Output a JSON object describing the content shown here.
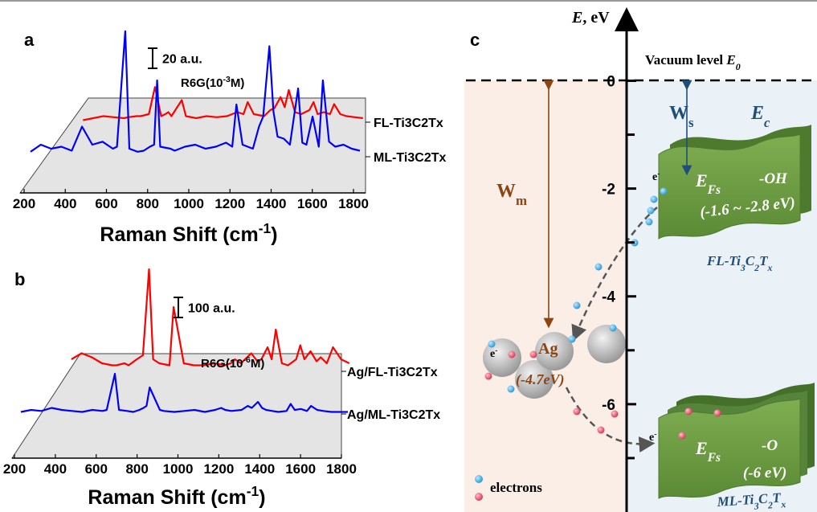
{
  "chart_data": [
    {
      "type": "line",
      "panel": "a",
      "annotation": [
        "R6G(10",
        "-3",
        "M)"
      ],
      "scale_bar": {
        "value": 20,
        "label": "20 a.u."
      },
      "xlabel": [
        "Raman Shift (cm",
        "-1",
        ")"
      ],
      "x": [
        200,
        250,
        300,
        350,
        400,
        450,
        500,
        550,
        600,
        620,
        660,
        680,
        720,
        750,
        780,
        800,
        815,
        830,
        880,
        900,
        950,
        1000,
        1050,
        1100,
        1150,
        1180,
        1200,
        1230,
        1280,
        1310,
        1330,
        1360,
        1380,
        1400,
        1430,
        1460,
        1500,
        1520,
        1540,
        1570,
        1600,
        1620,
        1650,
        1680,
        1720,
        1760,
        1800
      ],
      "xlim": [
        200,
        1800
      ],
      "xticks": [
        200,
        400,
        600,
        800,
        1000,
        1200,
        1400,
        1600,
        1800
      ],
      "series": [
        {
          "name": "FL-Ti3C2Tx",
          "color": "#ff0000",
          "values": [
            null,
            null,
            null,
            null,
            2,
            4,
            6,
            5,
            4,
            5,
            6,
            6,
            8,
            35,
            6,
            8,
            10,
            6,
            22,
            6,
            4,
            6,
            5,
            6,
            10,
            8,
            20,
            8,
            6,
            12,
            14,
            25,
            15,
            32,
            10,
            8,
            12,
            20,
            8,
            10,
            8,
            18,
            8,
            6,
            5,
            4,
            null
          ]
        },
        {
          "name": "ML-Ti3C2Tx",
          "color": "#0000ff",
          "values": [
            5,
            12,
            8,
            10,
            6,
            30,
            12,
            15,
            8,
            10,
            125,
            8,
            5,
            6,
            10,
            12,
            76,
            10,
            8,
            6,
            10,
            12,
            8,
            10,
            14,
            10,
            52,
            12,
            8,
            30,
            40,
            110,
            45,
            20,
            18,
            12,
            68,
            14,
            12,
            40,
            10,
            76,
            15,
            10,
            12,
            8,
            6
          ]
        }
      ]
    },
    {
      "type": "line",
      "panel": "b",
      "annotation": [
        "R6G(10",
        "-6",
        "M)"
      ],
      "scale_bar": {
        "value": 100,
        "label": "100 a.u."
      },
      "xlabel": [
        "Raman Shift (cm",
        "-1",
        ")"
      ],
      "x": [
        200,
        250,
        300,
        350,
        400,
        450,
        500,
        550,
        600,
        620,
        660,
        680,
        720,
        750,
        780,
        800,
        815,
        830,
        880,
        900,
        950,
        1000,
        1050,
        1100,
        1150,
        1180,
        1200,
        1230,
        1280,
        1310,
        1330,
        1360,
        1380,
        1400,
        1430,
        1460,
        1500,
        1520,
        1540,
        1570,
        1600,
        1620,
        1650,
        1680,
        1720,
        1760,
        1800
      ],
      "xlim": [
        200,
        1800
      ],
      "xticks": [
        200,
        400,
        600,
        800,
        1000,
        1200,
        1400,
        1600,
        1800
      ],
      "series": [
        {
          "name": "Ag/FL-Ti3C2Tx",
          "color": "#ff0000",
          "values": [
            null,
            null,
            null,
            null,
            60,
            90,
            70,
            40,
            30,
            30,
            40,
            30,
            60,
            80,
            508,
            60,
            50,
            40,
            30,
            320,
            40,
            30,
            30,
            40,
            30,
            40,
            60,
            40,
            90,
            50,
            60,
            120,
            60,
            208,
            40,
            30,
            60,
            130,
            60,
            100,
            50,
            70,
            40,
            120,
            60,
            40,
            null
          ]
        },
        {
          "name": "Ag/ML-Ti3C2Tx",
          "color": "#0000ff",
          "values": [
            10,
            20,
            15,
            30,
            20,
            15,
            10,
            20,
            15,
            20,
            200,
            20,
            15,
            10,
            20,
            30,
            40,
            132,
            20,
            15,
            10,
            15,
            20,
            10,
            20,
            30,
            20,
            15,
            20,
            40,
            30,
            60,
            30,
            20,
            15,
            10,
            15,
            50,
            20,
            25,
            15,
            40,
            20,
            15,
            10,
            10,
            10
          ]
        }
      ]
    }
  ],
  "diagram": {
    "panel": "c",
    "axis_label": [
      "E",
      ", eV"
    ],
    "ylim": [
      -8,
      1.2
    ],
    "yticks": [
      0,
      -2,
      -4,
      -6
    ],
    "minor_yticks": [
      -1,
      -3,
      -5,
      -7
    ],
    "vacuum": [
      "Vacuum level ",
      "E",
      "0"
    ],
    "wm": [
      "W",
      "m"
    ],
    "ws": [
      "W",
      "s"
    ],
    "ec": [
      "E",
      "c"
    ],
    "fl": {
      "efs": [
        "E",
        "Fs"
      ],
      "group": "-OH",
      "range": "(-1.6 ~ -2.8 eV)",
      "label": [
        "FL-Ti",
        "3",
        "C",
        "2",
        "T",
        "x"
      ]
    },
    "ml": {
      "efs": [
        "E",
        "Fs"
      ],
      "group": "-O",
      "range": "(-6 eV)",
      "label": [
        "ML-Ti",
        "3",
        "C",
        "2",
        "T",
        "x"
      ]
    },
    "ag": {
      "label": "Ag",
      "energy": "(-4.7eV)"
    },
    "electron": [
      "e",
      "-"
    ],
    "legend": "electrons"
  }
}
